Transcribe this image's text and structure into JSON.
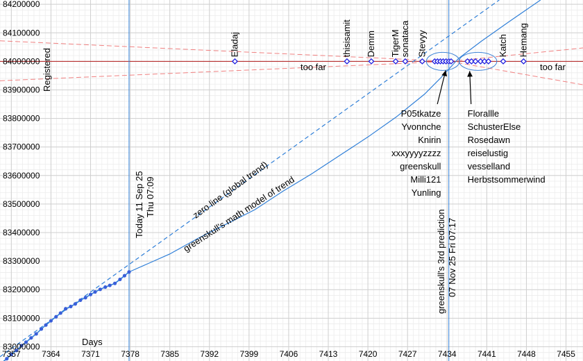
{
  "chart_data": {
    "type": "line",
    "xlabel": "Days",
    "ylabel": "Registered",
    "xlim": [
      7355,
      7458
    ],
    "ylim": [
      82950000,
      84215000
    ],
    "xticks": [
      7357,
      7364,
      7371,
      7378,
      7385,
      7392,
      7399,
      7406,
      7413,
      7420,
      7427,
      7434,
      7441,
      7448,
      7455
    ],
    "yticks": [
      83000000,
      83100000,
      83200000,
      83300000,
      83400000,
      83500000,
      83600000,
      83700000,
      83800000,
      83900000,
      84000000,
      84100000,
      84200000
    ],
    "grid": true,
    "colors": {
      "trend": "#2f7fd8",
      "points": "#3a5fd9",
      "target": "#b01818",
      "cone": "#f08080",
      "marker": "#2020e0",
      "ellipse": "#3b82d6"
    },
    "target_value": 84000000,
    "today": {
      "x": 7377.8,
      "label_line1": "Today 11 Sep 25",
      "label_line2": "Thu 07:09"
    },
    "prediction": {
      "x": 7434.3,
      "label_line1": "greenskull's 3rd prediction",
      "label_line2": "07 Nov 25 Fri 07:17"
    },
    "trend_labels": {
      "zero_line": "zero line (global trend)",
      "model": "greenskull's math model of trend"
    },
    "too_far_label": "too far",
    "observed": {
      "name": "Registered",
      "x": [
        7355.3,
        7356.2,
        7357.0,
        7357.9,
        7358.8,
        7359.6,
        7360.5,
        7361.4,
        7362.3,
        7363.1,
        7364.0,
        7364.9,
        7365.7,
        7366.6,
        7367.5,
        7368.3,
        7369.2,
        7370.1,
        7371.0,
        7371.8,
        7372.7,
        7373.6,
        7374.4,
        7375.3,
        7376.2,
        7377.0,
        7377.8
      ],
      "y": [
        82944000,
        82958000,
        82973000,
        82987000,
        83004000,
        83016000,
        83031000,
        83045000,
        83062000,
        83076000,
        83091000,
        83105000,
        83118000,
        83133000,
        83141000,
        83150000,
        83163000,
        83172000,
        83183000,
        83192000,
        83201000,
        83209000,
        83215000,
        83222000,
        83236000,
        83249000,
        83262000
      ]
    },
    "zero_line": {
      "x": [
        7355,
        7443.2
      ],
      "y": [
        82965000,
        84215000
      ]
    },
    "model_line": {
      "x": [
        7377.8,
        7381,
        7385,
        7390,
        7395,
        7400,
        7405,
        7410,
        7415,
        7420,
        7425,
        7430,
        7433,
        7436,
        7440,
        7445,
        7450.5
      ],
      "y": [
        83262000,
        83290000,
        83325000,
        83380000,
        83430000,
        83480000,
        83545000,
        83605000,
        83670000,
        83735000,
        83805000,
        83885000,
        83945000,
        84010000,
        84070000,
        84140000,
        84215000
      ]
    },
    "cone": {
      "upper": {
        "x": [
          7355,
          7434.5,
          7458
        ],
        "y": [
          84072000,
          84000000,
          83918000
        ]
      },
      "lower": {
        "x": [
          7355,
          7434.5,
          7458
        ],
        "y": [
          83932000,
          84000000,
          84047000
        ]
      }
    },
    "predictions": [
      {
        "name": "Eladaj",
        "x": 7396.5,
        "label": "above"
      },
      {
        "name": "thisisamit",
        "x": 7416.3,
        "label": "above"
      },
      {
        "name": "Demm",
        "x": 7420.6,
        "label": "above"
      },
      {
        "name": "TigerM",
        "x": 7424.9,
        "label": "above"
      },
      {
        "name": "sonataca",
        "x": 7426.6,
        "label": "above"
      },
      {
        "name": "Stevyy",
        "x": 7429.6,
        "label": "above"
      },
      {
        "name": "Katch",
        "x": 7443.9,
        "label": "above"
      },
      {
        "name": "Hemang",
        "x": 7447.5,
        "label": "above"
      },
      {
        "name": "P05tkatze",
        "x": 7431.8,
        "label": "left-group"
      },
      {
        "name": "Yvonnche",
        "x": 7432.3,
        "label": "left-group"
      },
      {
        "name": "Knirin",
        "x": 7432.8,
        "label": "left-group"
      },
      {
        "name": "xxxyyyyzzzz",
        "x": 7433.3,
        "label": "left-group"
      },
      {
        "name": "greenskull",
        "x": 7433.8,
        "label": "left-group"
      },
      {
        "name": "Milli121",
        "x": 7434.3,
        "label": "left-group"
      },
      {
        "name": "Yunling",
        "x": 7434.7,
        "label": "left-group"
      },
      {
        "name": "Florallle",
        "x": 7437.6,
        "label": "right-group"
      },
      {
        "name": "SchusterElse",
        "x": 7438.3,
        "label": "right-group"
      },
      {
        "name": "Rosedawn",
        "x": 7439.0,
        "label": "right-group"
      },
      {
        "name": "reiselustig",
        "x": 7439.9,
        "label": "right-group"
      },
      {
        "name": "vesselland",
        "x": 7440.6,
        "label": "right-group"
      },
      {
        "name": "Herbstsommerwind",
        "x": 7441.3,
        "label": "right-group"
      }
    ],
    "groups": {
      "left": [
        "P05tkatze",
        "Yvonnche",
        "Knirin",
        "xxxyyyyzzzz",
        "greenskull",
        "Milli121",
        "Yunling"
      ],
      "right": [
        "Florallle",
        "SchusterElse",
        "Rosedawn",
        "reiselustig",
        "vesselland",
        "Herbstsommerwind"
      ]
    }
  }
}
